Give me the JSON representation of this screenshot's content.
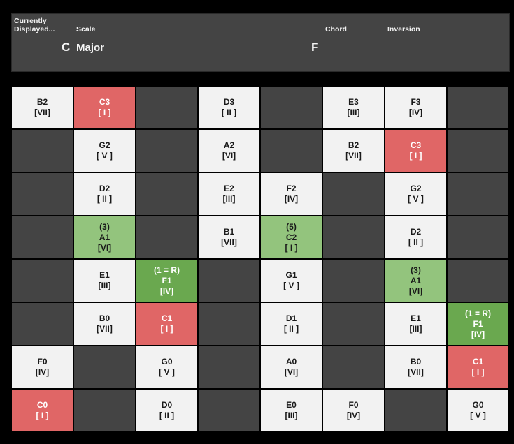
{
  "header": {
    "currently_displayed_label": "Currently\nDisplayed...",
    "scale_label": "Scale",
    "chord_label": "Chord",
    "inversion_label": "Inversion",
    "key": "C",
    "scale": "Major",
    "chord": "F",
    "inversion": ""
  },
  "colors": {
    "panel": "#444444",
    "inactive_note": "#f2f2f2",
    "root_note": "#e06666",
    "chord_root": "#6aa84f",
    "chord_tone": "#93c47d"
  },
  "grid": {
    "rows": [
      [
        {
          "state": "white",
          "lines": [
            "B2",
            "[VII]"
          ]
        },
        {
          "state": "red",
          "lines": [
            "C3",
            "[ I ]"
          ]
        },
        {
          "state": "dark",
          "lines": []
        },
        {
          "state": "white",
          "lines": [
            "D3",
            "[ II ]"
          ]
        },
        {
          "state": "dark",
          "lines": []
        },
        {
          "state": "white",
          "lines": [
            "E3",
            "[III]"
          ]
        },
        {
          "state": "white",
          "lines": [
            "F3",
            "[IV]"
          ]
        },
        {
          "state": "dark",
          "lines": []
        }
      ],
      [
        {
          "state": "dark",
          "lines": []
        },
        {
          "state": "white",
          "lines": [
            "G2",
            "[ V ]"
          ]
        },
        {
          "state": "dark",
          "lines": []
        },
        {
          "state": "white",
          "lines": [
            "A2",
            "[VI]"
          ]
        },
        {
          "state": "dark",
          "lines": []
        },
        {
          "state": "white",
          "lines": [
            "B2",
            "[VII]"
          ]
        },
        {
          "state": "red",
          "lines": [
            "C3",
            "[ I ]"
          ]
        },
        {
          "state": "dark",
          "lines": []
        }
      ],
      [
        {
          "state": "dark",
          "lines": []
        },
        {
          "state": "white",
          "lines": [
            "D2",
            "[ II ]"
          ]
        },
        {
          "state": "dark",
          "lines": []
        },
        {
          "state": "white",
          "lines": [
            "E2",
            "[III]"
          ]
        },
        {
          "state": "white",
          "lines": [
            "F2",
            "[IV]"
          ]
        },
        {
          "state": "dark",
          "lines": []
        },
        {
          "state": "white",
          "lines": [
            "G2",
            "[ V ]"
          ]
        },
        {
          "state": "dark",
          "lines": []
        }
      ],
      [
        {
          "state": "dark",
          "lines": []
        },
        {
          "state": "lightgreen",
          "lines": [
            "(3)",
            "A1",
            "[VI]"
          ]
        },
        {
          "state": "dark",
          "lines": []
        },
        {
          "state": "white",
          "lines": [
            "B1",
            "[VII]"
          ]
        },
        {
          "state": "lightgreen",
          "lines": [
            "(5)",
            "C2",
            "[ I ]"
          ]
        },
        {
          "state": "dark",
          "lines": []
        },
        {
          "state": "white",
          "lines": [
            "D2",
            "[ II ]"
          ]
        },
        {
          "state": "dark",
          "lines": []
        }
      ],
      [
        {
          "state": "dark",
          "lines": []
        },
        {
          "state": "white",
          "lines": [
            "E1",
            "[III]"
          ]
        },
        {
          "state": "green",
          "lines": [
            "(1 = R)",
            "F1",
            "[IV]"
          ]
        },
        {
          "state": "dark",
          "lines": []
        },
        {
          "state": "white",
          "lines": [
            "G1",
            "[ V ]"
          ]
        },
        {
          "state": "dark",
          "lines": []
        },
        {
          "state": "lightgreen",
          "lines": [
            "(3)",
            "A1",
            "[VI]"
          ]
        },
        {
          "state": "dark",
          "lines": []
        }
      ],
      [
        {
          "state": "dark",
          "lines": []
        },
        {
          "state": "white",
          "lines": [
            "B0",
            "[VII]"
          ]
        },
        {
          "state": "red",
          "lines": [
            "C1",
            "[ I ]"
          ]
        },
        {
          "state": "dark",
          "lines": []
        },
        {
          "state": "white",
          "lines": [
            "D1",
            "[ II ]"
          ]
        },
        {
          "state": "dark",
          "lines": []
        },
        {
          "state": "white",
          "lines": [
            "E1",
            "[III]"
          ]
        },
        {
          "state": "green",
          "lines": [
            "(1 = R)",
            "F1",
            "[IV]"
          ]
        }
      ],
      [
        {
          "state": "white",
          "lines": [
            "F0",
            "[IV]"
          ]
        },
        {
          "state": "dark",
          "lines": []
        },
        {
          "state": "white",
          "lines": [
            "G0",
            "[ V ]"
          ]
        },
        {
          "state": "dark",
          "lines": []
        },
        {
          "state": "white",
          "lines": [
            "A0",
            "[VI]"
          ]
        },
        {
          "state": "dark",
          "lines": []
        },
        {
          "state": "white",
          "lines": [
            "B0",
            "[VII]"
          ]
        },
        {
          "state": "red",
          "lines": [
            "C1",
            "[ I ]"
          ]
        }
      ],
      [
        {
          "state": "red",
          "lines": [
            "C0",
            "[ I ]"
          ]
        },
        {
          "state": "dark",
          "lines": []
        },
        {
          "state": "white",
          "lines": [
            "D0",
            "[ II ]"
          ]
        },
        {
          "state": "dark",
          "lines": []
        },
        {
          "state": "white",
          "lines": [
            "E0",
            "[III]"
          ]
        },
        {
          "state": "white",
          "lines": [
            "F0",
            "[IV]"
          ]
        },
        {
          "state": "dark",
          "lines": []
        },
        {
          "state": "white",
          "lines": [
            "G0",
            "[ V ]"
          ]
        }
      ]
    ]
  }
}
